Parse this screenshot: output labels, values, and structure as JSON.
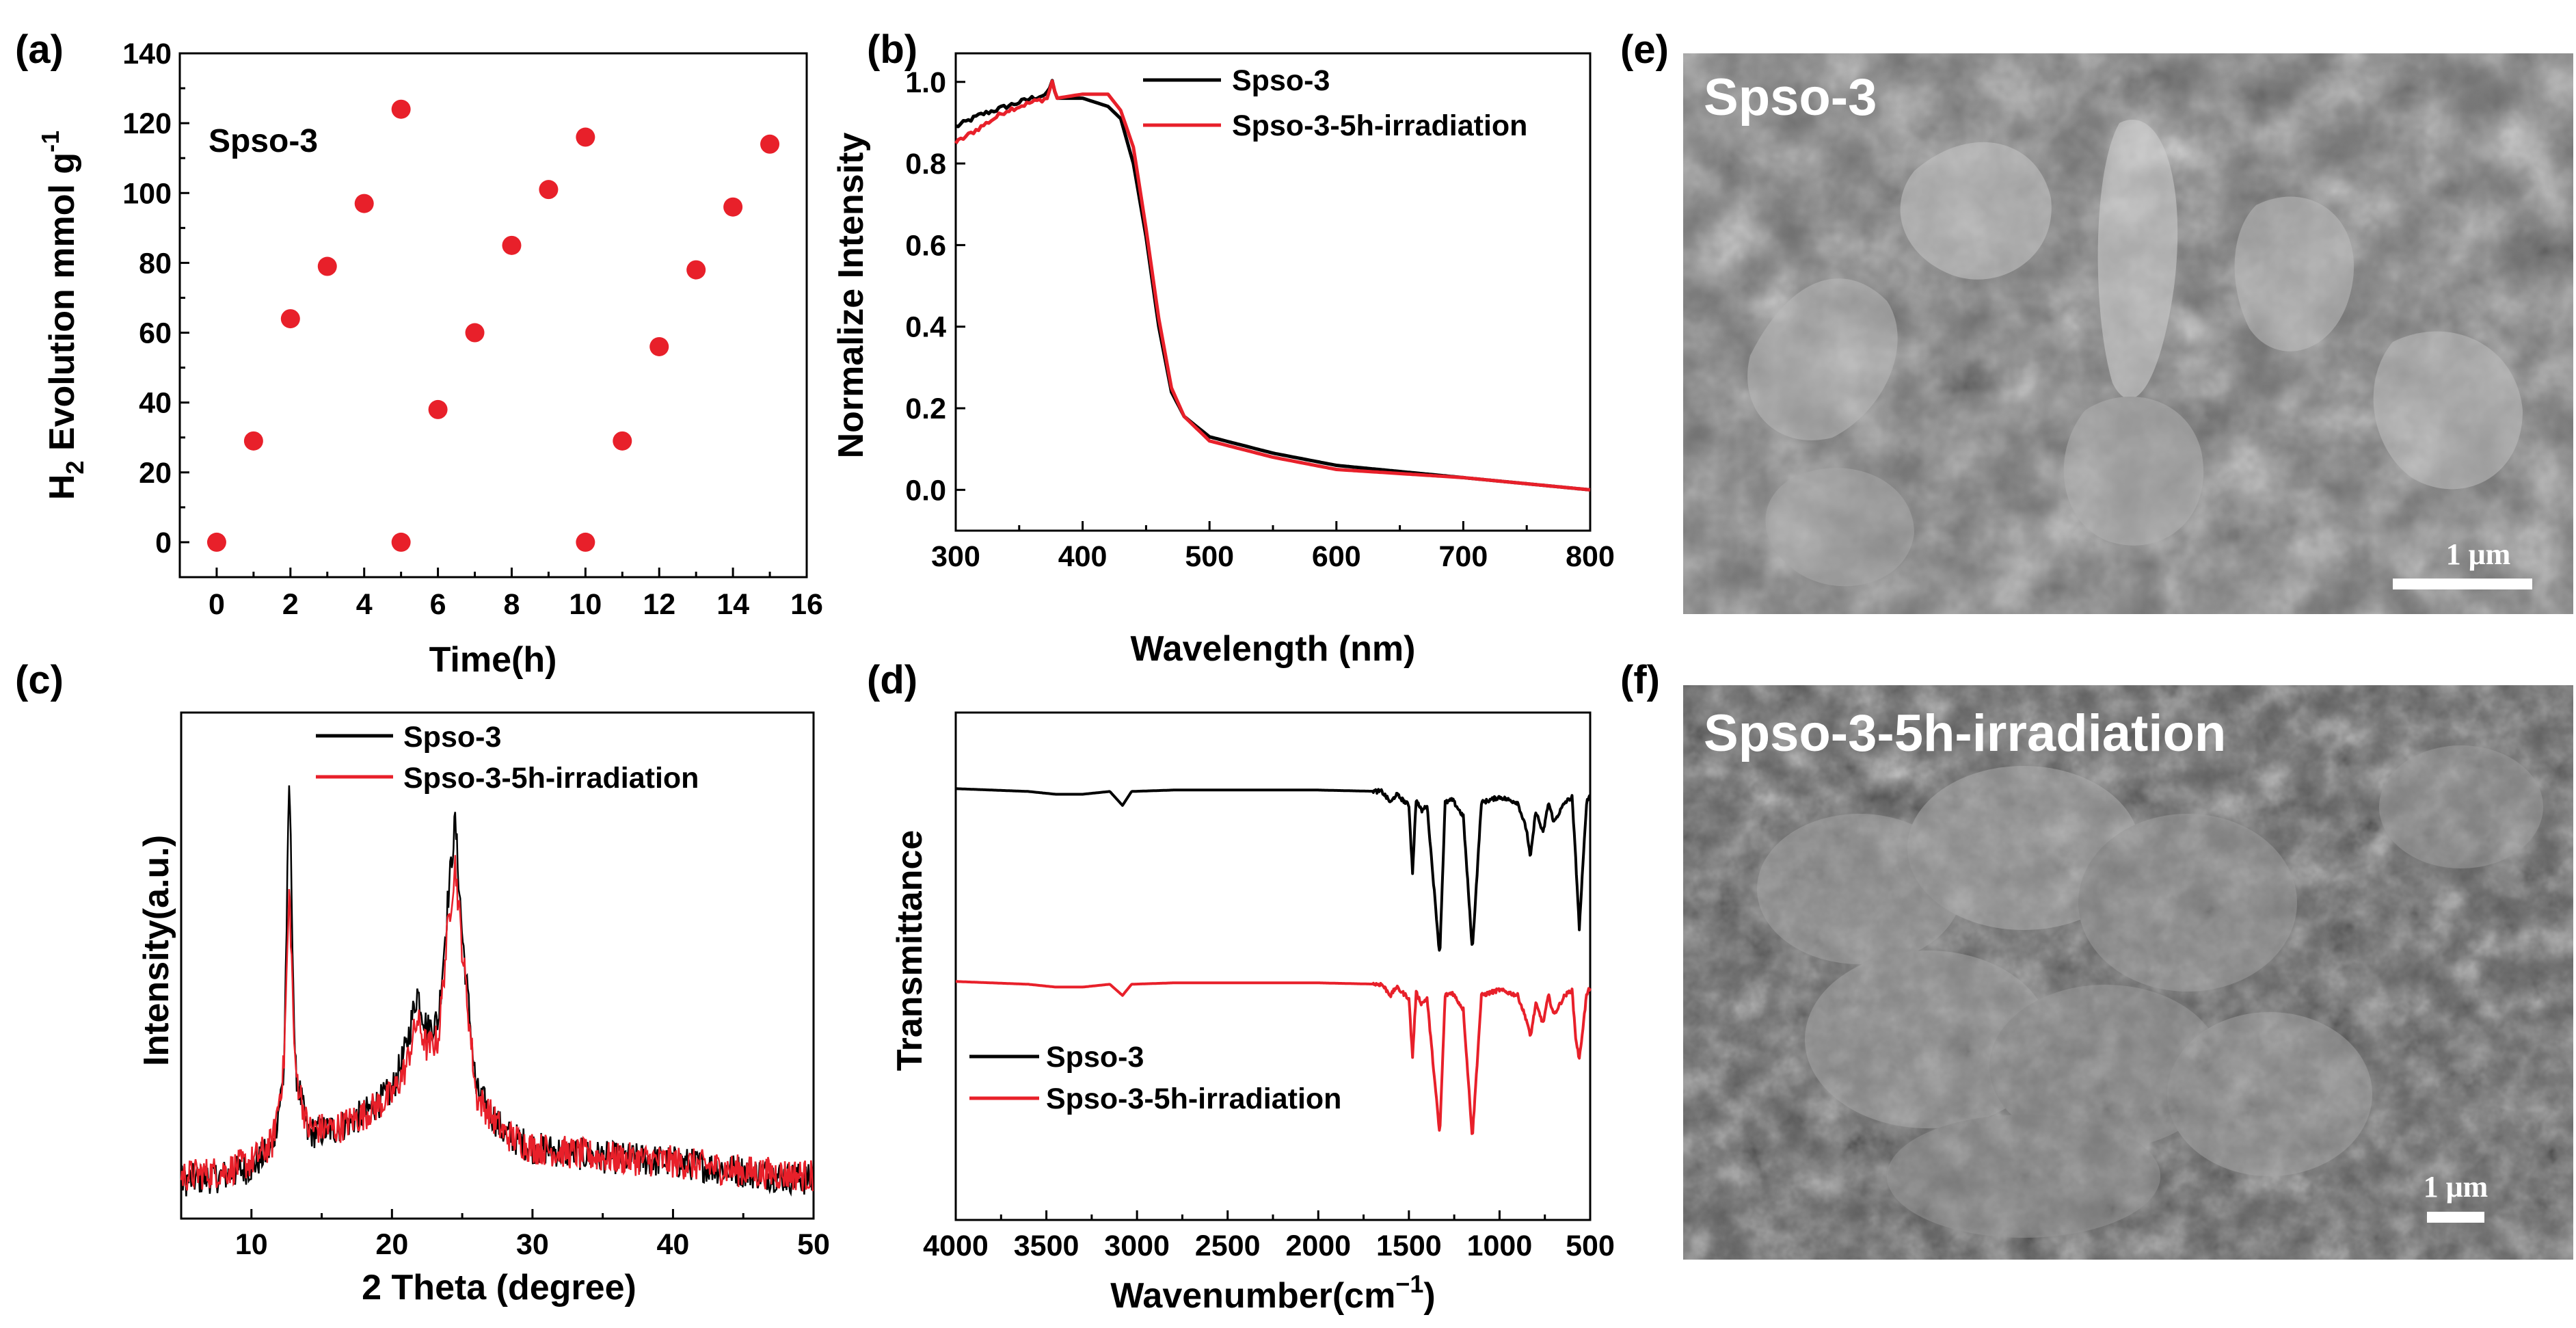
{
  "chart_data": [
    {
      "panel": "(a)",
      "type": "scatter",
      "xlabel": "Time(h)",
      "ylabel": "H2 Evolution mmol g-1",
      "ylabel_parts": {
        "main": "H",
        "sub": "2",
        "rest": " Evolution mmol g",
        "sup": "-1"
      },
      "annotation": "Spso-3",
      "xlim": [
        -1,
        16
      ],
      "ylim": [
        -10,
        140
      ],
      "xticks": [
        "0",
        "2",
        "4",
        "6",
        "8",
        "10",
        "12",
        "14",
        "16"
      ],
      "yticks": [
        "0",
        "20",
        "40",
        "60",
        "80",
        "100",
        "120",
        "140"
      ],
      "color": "#e8202a",
      "points": [
        [
          0,
          0
        ],
        [
          1,
          29
        ],
        [
          2,
          64
        ],
        [
          3,
          79
        ],
        [
          4,
          97
        ],
        [
          5,
          124
        ],
        [
          5,
          0
        ],
        [
          6,
          38
        ],
        [
          7,
          60
        ],
        [
          8,
          85
        ],
        [
          9,
          101
        ],
        [
          10,
          116
        ],
        [
          10,
          0
        ],
        [
          11,
          29
        ],
        [
          12,
          56
        ],
        [
          13,
          78
        ],
        [
          14,
          96
        ],
        [
          15,
          114
        ]
      ]
    },
    {
      "panel": "(b)",
      "type": "line",
      "xlabel": "Wavelength (nm)",
      "ylabel": "Normalize Intensity",
      "xlim": [
        300,
        800
      ],
      "ylim": [
        -0.1,
        1.07
      ],
      "xticks": [
        "300",
        "400",
        "500",
        "600",
        "700",
        "800"
      ],
      "yticks": [
        "0.0",
        "0.2",
        "0.4",
        "0.6",
        "0.8",
        "1.0"
      ],
      "legend": [
        "Spso-3",
        "Spso-3-5h-irradiation"
      ],
      "series": [
        {
          "name": "Spso-3",
          "color": "#000000",
          "x": [
            300,
            320,
            340,
            360,
            372,
            376,
            380,
            400,
            420,
            430,
            440,
            450,
            460,
            470,
            480,
            500,
            550,
            600,
            700,
            800
          ],
          "y": [
            0.89,
            0.92,
            0.94,
            0.96,
            0.97,
            1.0,
            0.96,
            0.96,
            0.94,
            0.91,
            0.8,
            0.62,
            0.4,
            0.24,
            0.18,
            0.13,
            0.09,
            0.06,
            0.03,
            0.0
          ]
        },
        {
          "name": "Spso-3-5h-irradiation",
          "color": "#e8202a",
          "x": [
            300,
            320,
            340,
            360,
            372,
            376,
            380,
            400,
            420,
            430,
            440,
            450,
            460,
            470,
            480,
            500,
            550,
            600,
            700,
            800
          ],
          "y": [
            0.85,
            0.89,
            0.93,
            0.95,
            0.96,
            1.0,
            0.96,
            0.97,
            0.97,
            0.93,
            0.84,
            0.64,
            0.42,
            0.25,
            0.18,
            0.12,
            0.08,
            0.05,
            0.03,
            0.0
          ]
        }
      ]
    },
    {
      "panel": "(c)",
      "type": "line",
      "xlabel": "2 Theta (degree)",
      "ylabel": "Intensity(a.u.)",
      "xlim": [
        5,
        50
      ],
      "xticks": [
        "10",
        "20",
        "30",
        "40",
        "50"
      ],
      "legend": [
        "Spso-3",
        "Spso-3-5h-irradiation"
      ],
      "series": [
        {
          "name": "Spso-3",
          "color": "#000000",
          "x": [
            5,
            8,
            10,
            11.5,
            12.3,
            12.7,
            13.1,
            14,
            16,
            18,
            20,
            21,
            21.8,
            22.5,
            23.3,
            24,
            24.5,
            25,
            26,
            28,
            30,
            35,
            40,
            45,
            50
          ],
          "y": [
            0.06,
            0.07,
            0.09,
            0.13,
            0.28,
            0.92,
            0.3,
            0.16,
            0.17,
            0.2,
            0.25,
            0.34,
            0.46,
            0.38,
            0.4,
            0.66,
            0.82,
            0.58,
            0.25,
            0.16,
            0.13,
            0.11,
            0.1,
            0.08,
            0.06
          ]
        },
        {
          "name": "Spso-3-5h-irradiation",
          "color": "#e8202a",
          "x": [
            5,
            8,
            10,
            11.5,
            12.3,
            12.7,
            13.1,
            14,
            16,
            18,
            20,
            21,
            21.8,
            22.5,
            23.3,
            24,
            24.5,
            25,
            26,
            28,
            30,
            35,
            40,
            45,
            50
          ],
          "y": [
            0.07,
            0.08,
            0.1,
            0.14,
            0.3,
            0.68,
            0.3,
            0.17,
            0.17,
            0.2,
            0.24,
            0.3,
            0.4,
            0.34,
            0.36,
            0.6,
            0.73,
            0.55,
            0.24,
            0.16,
            0.13,
            0.11,
            0.1,
            0.08,
            0.07
          ]
        }
      ]
    },
    {
      "panel": "(d)",
      "type": "line",
      "xlabel": "Wavenumber(cm-1)",
      "xlabel_parts": {
        "main": "Wavenumber(cm",
        "sup": "−1",
        "rest": ")"
      },
      "ylabel": "Transmittance",
      "xlim": [
        4000,
        500
      ],
      "xticks": [
        "4000",
        "3500",
        "3000",
        "2500",
        "2000",
        "1500",
        "1000",
        "500"
      ],
      "legend": [
        "Spso-3",
        "Spso-3-5h-irradiation"
      ],
      "series": [
        {
          "name": "Spso-3",
          "color": "#000000",
          "offset": 0.85,
          "x": [
            4000,
            3600,
            3450,
            3300,
            3150,
            3080,
            3030,
            2800,
            2000,
            1650,
            1600,
            1570,
            1500,
            1480,
            1460,
            1430,
            1400,
            1330,
            1300,
            1260,
            1200,
            1150,
            1100,
            1000,
            900,
            850,
            830,
            800,
            760,
            730,
            700,
            640,
            600,
            580,
            560,
            520,
            500
          ],
          "y": [
            0,
            0.01,
            0.02,
            0.02,
            0.01,
            0.06,
            0.01,
            0.005,
            0.005,
            0.01,
            0.05,
            0.02,
            0.06,
            0.3,
            0.04,
            0.08,
            0.06,
            0.6,
            0.05,
            0.04,
            0.1,
            0.58,
            0.05,
            0.03,
            0.05,
            0.15,
            0.25,
            0.08,
            0.16,
            0.05,
            0.12,
            0.05,
            0.03,
            0.25,
            0.5,
            0.05,
            0.02
          ]
        },
        {
          "name": "Spso-3-5h-irradiation",
          "color": "#e8202a",
          "offset": 0.47,
          "x": [
            4000,
            3600,
            3450,
            3300,
            3150,
            3080,
            3030,
            2800,
            2000,
            1650,
            1600,
            1570,
            1500,
            1480,
            1460,
            1430,
            1400,
            1330,
            1300,
            1260,
            1200,
            1150,
            1100,
            1000,
            900,
            850,
            830,
            800,
            760,
            730,
            700,
            640,
            600,
            580,
            560,
            520,
            500
          ],
          "y": [
            0,
            0.01,
            0.02,
            0.02,
            0.01,
            0.05,
            0.01,
            0.005,
            0.005,
            0.01,
            0.05,
            0.02,
            0.06,
            0.27,
            0.04,
            0.08,
            0.06,
            0.55,
            0.05,
            0.04,
            0.1,
            0.56,
            0.05,
            0.03,
            0.05,
            0.14,
            0.2,
            0.08,
            0.15,
            0.05,
            0.12,
            0.05,
            0.03,
            0.2,
            0.28,
            0.05,
            0.02
          ]
        }
      ]
    }
  ],
  "images": {
    "e": {
      "panel": "(e)",
      "label": "Spso-3",
      "scale": "1 μm"
    },
    "f": {
      "panel": "(f)",
      "label": "Spso-3-5h-irradiation",
      "scale": "1 μm"
    }
  },
  "colors": {
    "red": "#e8202a",
    "black": "#000000",
    "sem_bg": "#6f6f6f"
  }
}
